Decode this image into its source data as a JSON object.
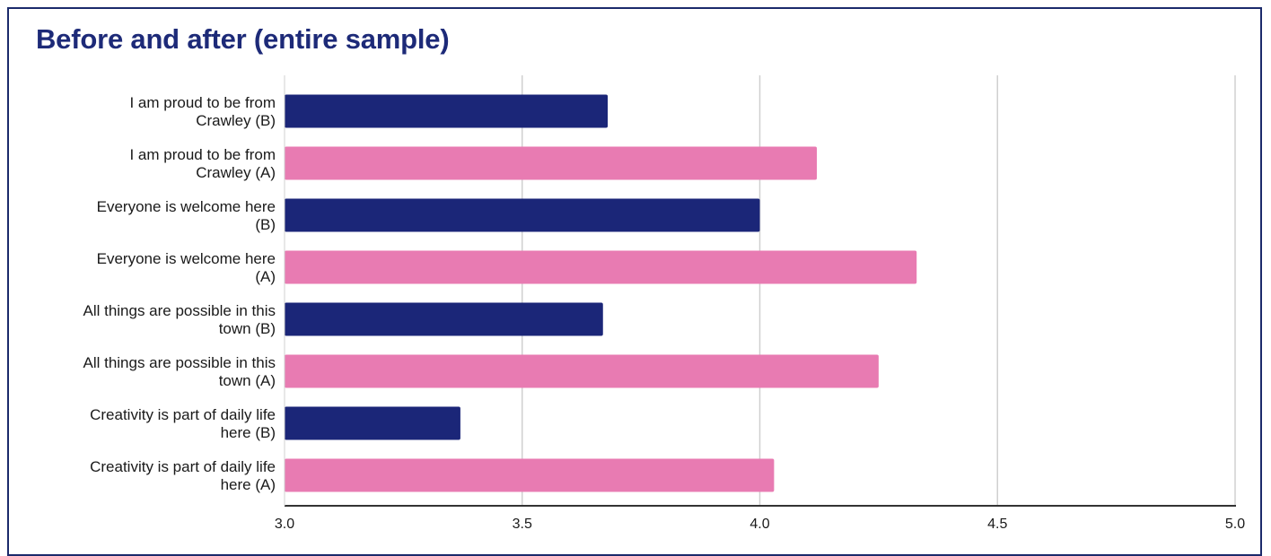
{
  "chart_data": {
    "type": "bar",
    "orientation": "horizontal",
    "title": "Before and after (entire sample)",
    "xlabel": "",
    "ylabel": "",
    "categories": [
      [
        "I am proud to be from",
        "Crawley (B)"
      ],
      [
        "I am proud to be from",
        "Crawley (A)"
      ],
      [
        "Everyone is welcome here",
        "(B)"
      ],
      [
        "Everyone is welcome here",
        "(A)"
      ],
      [
        "All things are possible in this",
        "town (B)"
      ],
      [
        "All things are possible in this",
        "town (A)"
      ],
      [
        "Creativity is part of daily life",
        "here (B)"
      ],
      [
        "Creativity is part of daily life",
        "here (A)"
      ]
    ],
    "values": [
      3.68,
      4.12,
      4.0,
      4.33,
      3.67,
      4.25,
      3.37,
      4.03
    ],
    "bar_colors": [
      "#1b2678",
      "#e87bb2",
      "#1b2678",
      "#e87bb2",
      "#1b2678",
      "#e87bb2",
      "#1b2678",
      "#e87bb2"
    ],
    "xlim": [
      3.0,
      5.0
    ],
    "xticks": [
      "3.0",
      "3.5",
      "4.0",
      "4.5",
      "5.0"
    ],
    "grid": true,
    "legend": "none"
  },
  "colors": {
    "title": "#1d2a78",
    "before": "#1b2678",
    "after": "#e87bb2",
    "grid": "#d0d0d0",
    "axis": "#333333",
    "border": "#1b2a6b"
  }
}
